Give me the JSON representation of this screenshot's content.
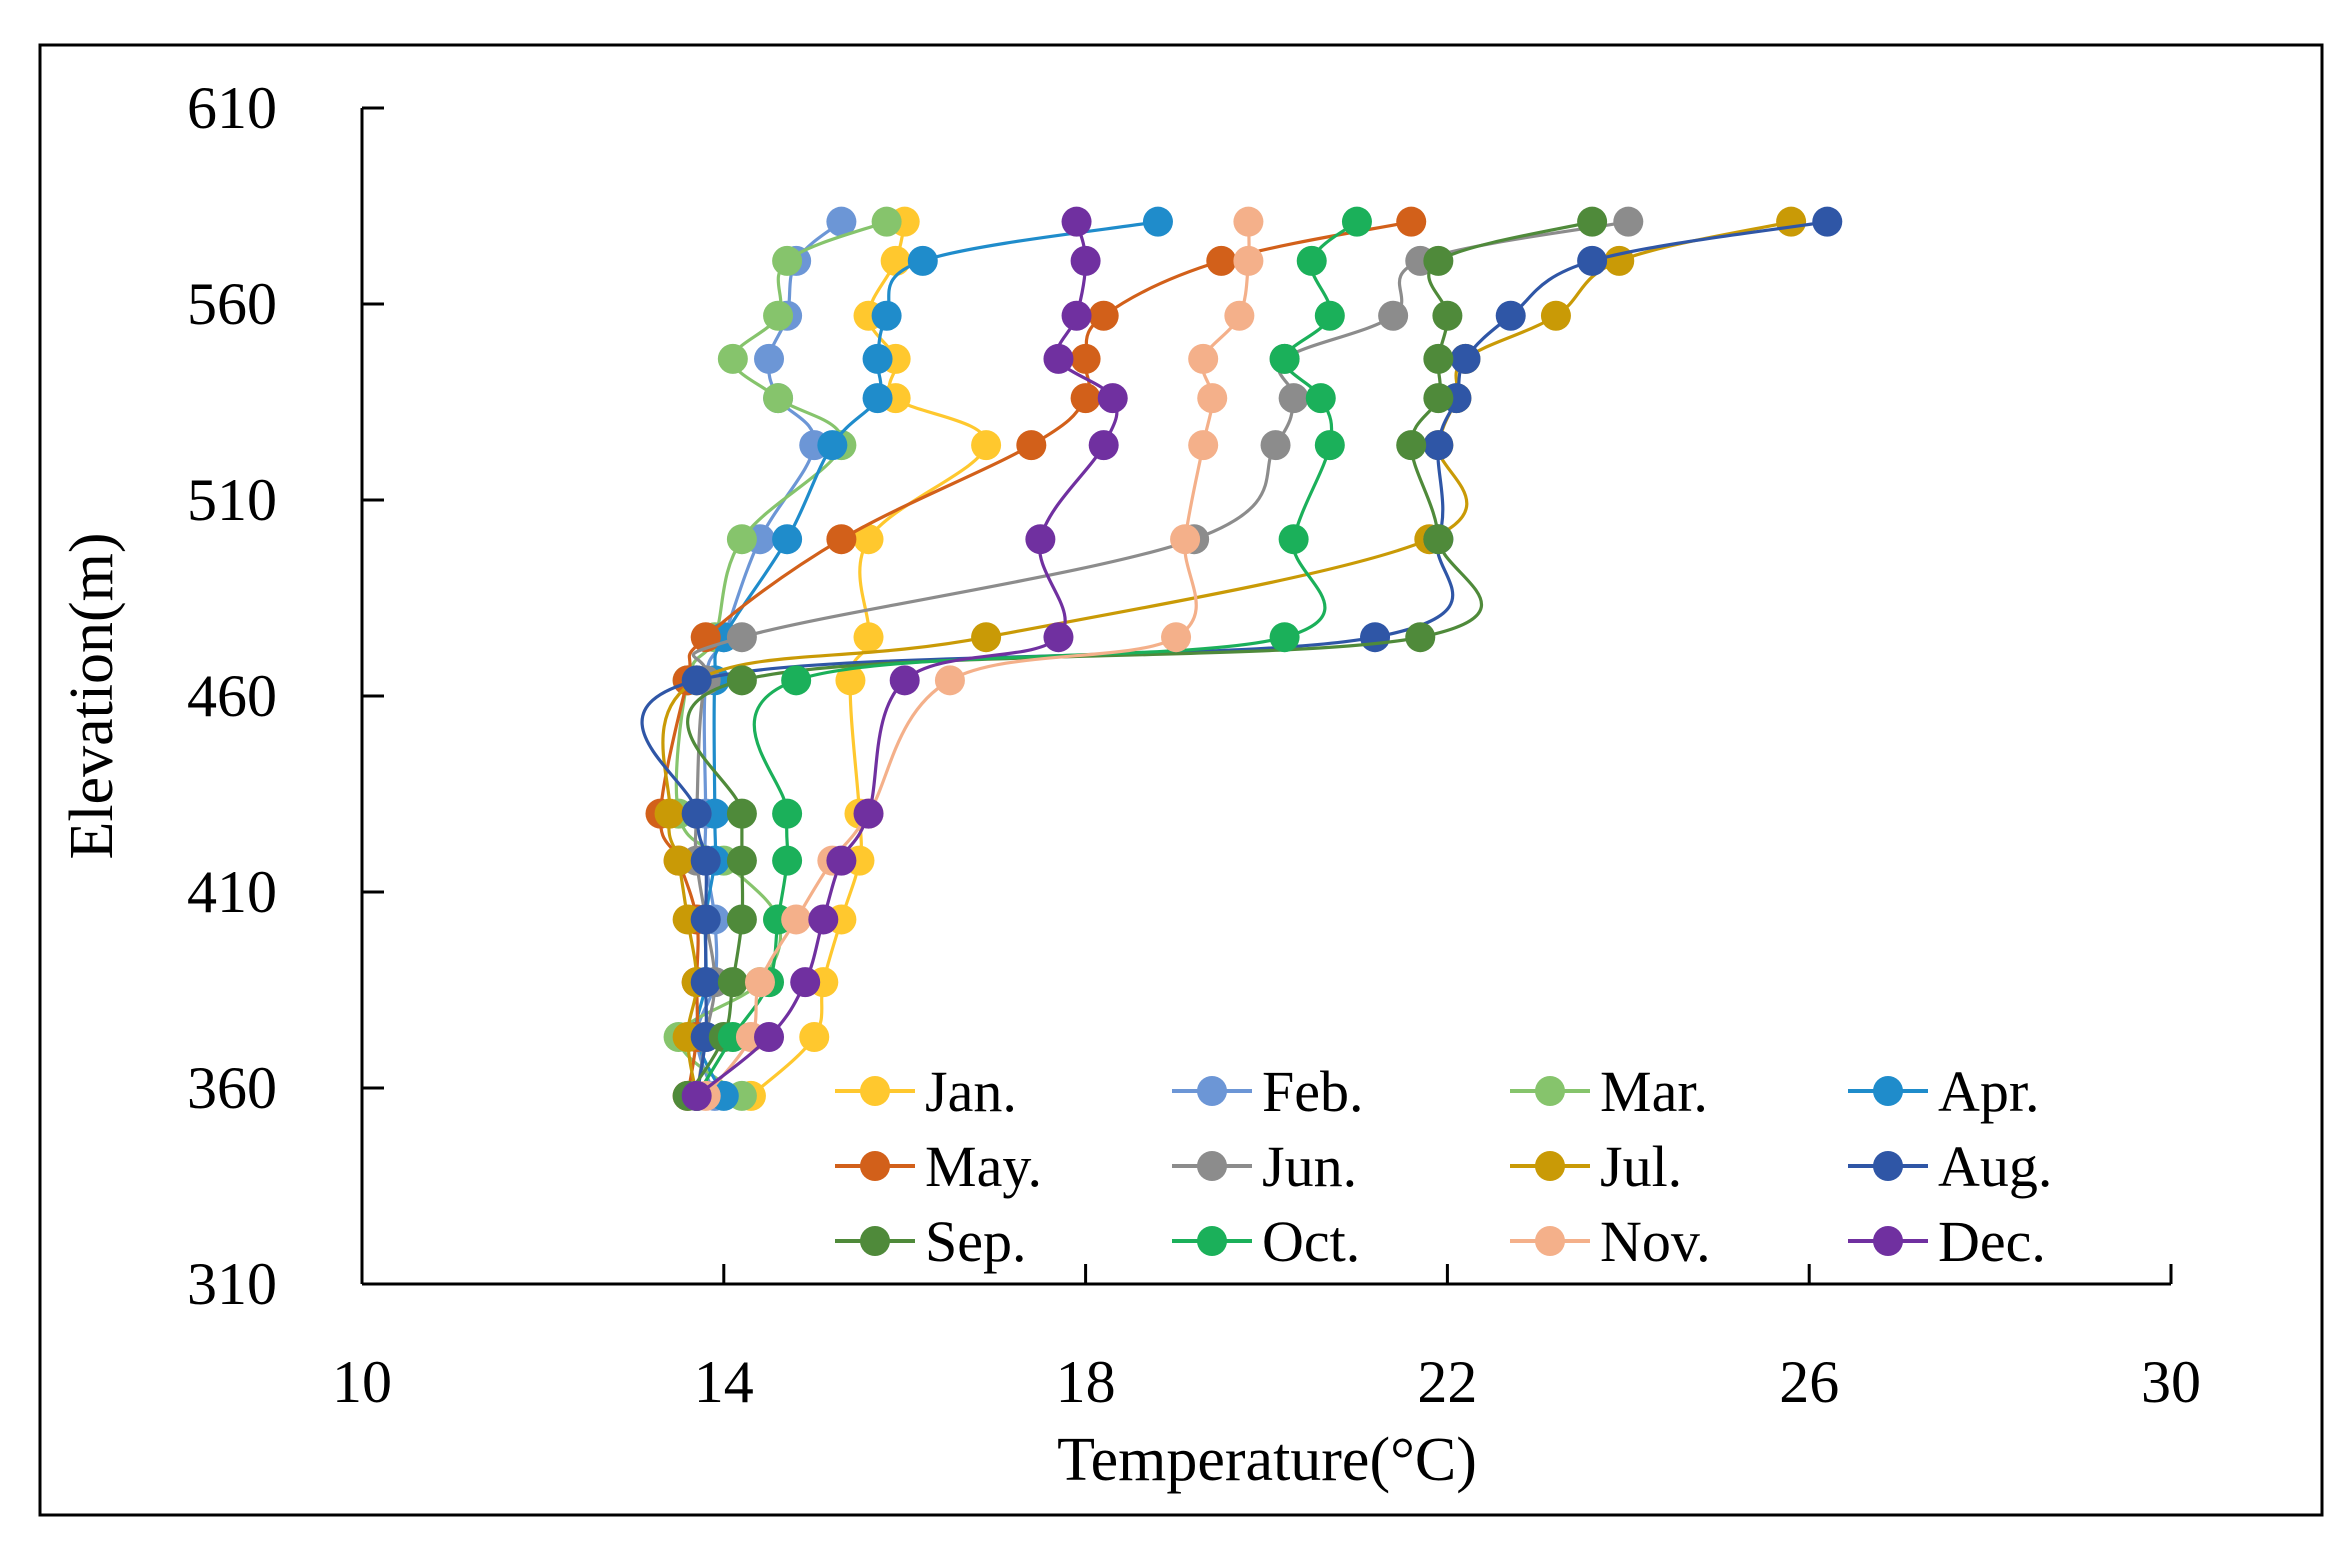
{
  "chart_data": {
    "type": "line",
    "title": "",
    "xlabel": "Temperature(°C)",
    "ylabel": "Elevation(m)",
    "xlim": [
      10,
      30
    ],
    "ylim": [
      310,
      610
    ],
    "xticks": [
      "10",
      "14",
      "18",
      "22",
      "26",
      "30"
    ],
    "yticks": [
      "310",
      "360",
      "410",
      "460",
      "510",
      "560",
      "610"
    ],
    "grid": false,
    "legend_position": "bottom-right",
    "series": [
      {
        "name": "Jan.",
        "color": "#FFC82E",
        "points": [
          [
            16.0,
            581
          ],
          [
            15.9,
            571
          ],
          [
            15.6,
            557
          ],
          [
            15.9,
            546
          ],
          [
            15.9,
            536
          ],
          [
            16.9,
            524
          ],
          [
            15.6,
            500
          ],
          [
            15.6,
            475
          ],
          [
            15.4,
            464
          ],
          [
            15.5,
            430
          ],
          [
            15.5,
            418
          ],
          [
            15.3,
            403
          ],
          [
            15.1,
            387
          ],
          [
            15.0,
            373
          ],
          [
            14.3,
            358
          ]
        ]
      },
      {
        "name": "Feb.",
        "color": "#6C96D6",
        "points": [
          [
            15.3,
            581
          ],
          [
            14.8,
            571
          ],
          [
            14.7,
            557
          ],
          [
            14.5,
            546
          ],
          [
            14.6,
            536
          ],
          [
            15.0,
            524
          ],
          [
            14.4,
            500
          ],
          [
            14.0,
            475
          ],
          [
            13.8,
            464
          ],
          [
            13.8,
            430
          ],
          [
            13.8,
            418
          ],
          [
            13.9,
            403
          ],
          [
            13.9,
            387
          ],
          [
            13.7,
            373
          ],
          [
            13.9,
            358
          ]
        ]
      },
      {
        "name": "Mar.",
        "color": "#86C46C",
        "points": [
          [
            15.8,
            581
          ],
          [
            14.7,
            571
          ],
          [
            14.6,
            557
          ],
          [
            14.1,
            546
          ],
          [
            14.6,
            536
          ],
          [
            15.3,
            524
          ],
          [
            14.2,
            500
          ],
          [
            13.9,
            475
          ],
          [
            13.6,
            464
          ],
          [
            13.5,
            430
          ],
          [
            14.0,
            418
          ],
          [
            14.6,
            403
          ],
          [
            14.4,
            387
          ],
          [
            13.5,
            373
          ],
          [
            14.2,
            358
          ]
        ]
      },
      {
        "name": "Apr.",
        "color": "#1F8CCB",
        "points": [
          [
            18.8,
            581
          ],
          [
            16.2,
            571
          ],
          [
            15.8,
            557
          ],
          [
            15.7,
            546
          ],
          [
            15.7,
            536
          ],
          [
            15.2,
            524
          ],
          [
            14.7,
            500
          ],
          [
            14.0,
            475
          ],
          [
            13.9,
            464
          ],
          [
            13.9,
            430
          ],
          [
            13.9,
            418
          ],
          [
            13.8,
            403
          ],
          [
            13.8,
            387
          ],
          [
            13.7,
            373
          ],
          [
            14.0,
            358
          ]
        ]
      },
      {
        "name": "May.",
        "color": "#D2601A",
        "points": [
          [
            21.6,
            581
          ],
          [
            19.5,
            571
          ],
          [
            18.2,
            557
          ],
          [
            18.0,
            546
          ],
          [
            18.0,
            536
          ],
          [
            17.4,
            524
          ],
          [
            15.3,
            500
          ],
          [
            13.8,
            475
          ],
          [
            13.6,
            464
          ],
          [
            13.3,
            430
          ],
          [
            13.5,
            418
          ],
          [
            13.7,
            403
          ],
          [
            13.7,
            387
          ],
          [
            13.7,
            373
          ],
          [
            13.6,
            358
          ]
        ]
      },
      {
        "name": "Jun.",
        "color": "#8C8C8C",
        "points": [
          [
            24.0,
            581
          ],
          [
            21.7,
            571
          ],
          [
            21.4,
            557
          ],
          [
            20.2,
            546
          ],
          [
            20.3,
            536
          ],
          [
            20.1,
            524
          ],
          [
            19.2,
            500
          ],
          [
            14.2,
            475
          ],
          [
            13.8,
            464
          ],
          [
            13.7,
            430
          ],
          [
            13.7,
            418
          ],
          [
            13.8,
            403
          ],
          [
            13.9,
            387
          ],
          [
            13.8,
            373
          ],
          [
            13.7,
            358
          ]
        ]
      },
      {
        "name": "Jul.",
        "color": "#C99A06",
        "points": [
          [
            25.8,
            581
          ],
          [
            23.9,
            571
          ],
          [
            23.2,
            557
          ],
          [
            22.2,
            546
          ],
          [
            22.1,
            536
          ],
          [
            21.9,
            524
          ],
          [
            21.8,
            500
          ],
          [
            16.9,
            475
          ],
          [
            13.7,
            464
          ],
          [
            13.4,
            430
          ],
          [
            13.5,
            418
          ],
          [
            13.6,
            403
          ],
          [
            13.7,
            387
          ],
          [
            13.6,
            373
          ],
          [
            13.7,
            358
          ]
        ]
      },
      {
        "name": "Aug.",
        "color": "#2F56A6",
        "points": [
          [
            26.2,
            581
          ],
          [
            23.6,
            571
          ],
          [
            22.7,
            557
          ],
          [
            22.2,
            546
          ],
          [
            22.1,
            536
          ],
          [
            21.9,
            524
          ],
          [
            21.9,
            500
          ],
          [
            21.2,
            475
          ],
          [
            13.7,
            464
          ],
          [
            13.7,
            430
          ],
          [
            13.8,
            418
          ],
          [
            13.8,
            403
          ],
          [
            13.8,
            387
          ],
          [
            13.8,
            373
          ],
          [
            13.7,
            358
          ]
        ]
      },
      {
        "name": "Sep.",
        "color": "#4F8A3A",
        "points": [
          [
            23.6,
            581
          ],
          [
            21.9,
            571
          ],
          [
            22.0,
            557
          ],
          [
            21.9,
            546
          ],
          [
            21.9,
            536
          ],
          [
            21.6,
            524
          ],
          [
            21.9,
            500
          ],
          [
            21.7,
            475
          ],
          [
            14.2,
            464
          ],
          [
            14.2,
            430
          ],
          [
            14.2,
            418
          ],
          [
            14.2,
            403
          ],
          [
            14.1,
            387
          ],
          [
            14.0,
            373
          ],
          [
            13.6,
            358
          ]
        ]
      },
      {
        "name": "Oct.",
        "color": "#1BB05A",
        "points": [
          [
            21.0,
            581
          ],
          [
            20.5,
            571
          ],
          [
            20.7,
            557
          ],
          [
            20.2,
            546
          ],
          [
            20.6,
            536
          ],
          [
            20.7,
            524
          ],
          [
            20.3,
            500
          ],
          [
            20.2,
            475
          ],
          [
            14.8,
            464
          ],
          [
            14.7,
            430
          ],
          [
            14.7,
            418
          ],
          [
            14.6,
            403
          ],
          [
            14.5,
            387
          ],
          [
            14.1,
            373
          ],
          [
            13.7,
            358
          ]
        ]
      },
      {
        "name": "Nov.",
        "color": "#F4B08A",
        "points": [
          [
            19.8,
            581
          ],
          [
            19.8,
            571
          ],
          [
            19.7,
            557
          ],
          [
            19.3,
            546
          ],
          [
            19.4,
            536
          ],
          [
            19.3,
            524
          ],
          [
            19.1,
            500
          ],
          [
            19.0,
            475
          ],
          [
            16.5,
            464
          ],
          [
            15.6,
            430
          ],
          [
            15.2,
            418
          ],
          [
            14.8,
            403
          ],
          [
            14.4,
            387
          ],
          [
            14.3,
            373
          ],
          [
            13.8,
            358
          ]
        ]
      },
      {
        "name": "Dec.",
        "color": "#7030A0",
        "points": [
          [
            17.9,
            581
          ],
          [
            18.0,
            571
          ],
          [
            17.9,
            557
          ],
          [
            17.7,
            546
          ],
          [
            18.3,
            536
          ],
          [
            18.2,
            524
          ],
          [
            17.5,
            500
          ],
          [
            17.7,
            475
          ],
          [
            16.0,
            464
          ],
          [
            15.6,
            430
          ],
          [
            15.3,
            418
          ],
          [
            15.1,
            403
          ],
          [
            14.9,
            387
          ],
          [
            14.5,
            373
          ],
          [
            13.7,
            358
          ]
        ]
      }
    ]
  }
}
